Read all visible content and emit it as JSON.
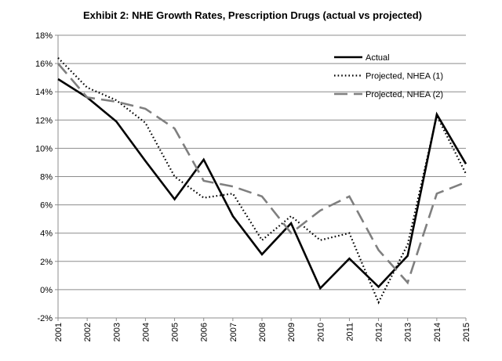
{
  "chart_data": {
    "type": "line",
    "title": "Exhibit 2: NHE Growth Rates, Prescription Drugs (actual vs projected)",
    "xlabel": "",
    "ylabel": "",
    "x": [
      "2001",
      "2002",
      "2003",
      "2004",
      "2005",
      "2006",
      "2007",
      "2008",
      "2009",
      "2010",
      "2011",
      "2012",
      "2013",
      "2014",
      "2015"
    ],
    "ylim": [
      -2,
      18
    ],
    "yticks": [
      -2,
      0,
      2,
      4,
      6,
      8,
      10,
      12,
      14,
      16,
      18
    ],
    "ytick_labels": [
      "-2%",
      "0%",
      "2%",
      "4%",
      "6%",
      "8%",
      "10%",
      "12%",
      "14%",
      "16%",
      "18%"
    ],
    "grid": true,
    "legend_position": "top-right",
    "series": [
      {
        "name": "Actual",
        "style": "solid",
        "color": "#000000",
        "values": [
          14.9,
          13.6,
          11.9,
          9.1,
          6.4,
          9.2,
          5.2,
          2.5,
          4.7,
          0.1,
          2.2,
          0.2,
          2.4,
          12.4,
          8.9
        ]
      },
      {
        "name": "Projected, NHEA (1)",
        "style": "dotted",
        "color": "#000000",
        "values": [
          16.4,
          14.3,
          13.4,
          11.8,
          8.0,
          6.5,
          6.8,
          3.5,
          5.2,
          3.5,
          4.0,
          -0.9,
          3.2,
          12.3,
          8.2
        ]
      },
      {
        "name": "Projected, NHEA (2)",
        "style": "dashed",
        "color": "#7f7f7f",
        "values": [
          16.0,
          13.6,
          13.3,
          12.8,
          11.4,
          7.7,
          7.3,
          6.6,
          4.0,
          5.6,
          6.6,
          2.8,
          0.5,
          6.8,
          7.6
        ]
      }
    ]
  }
}
